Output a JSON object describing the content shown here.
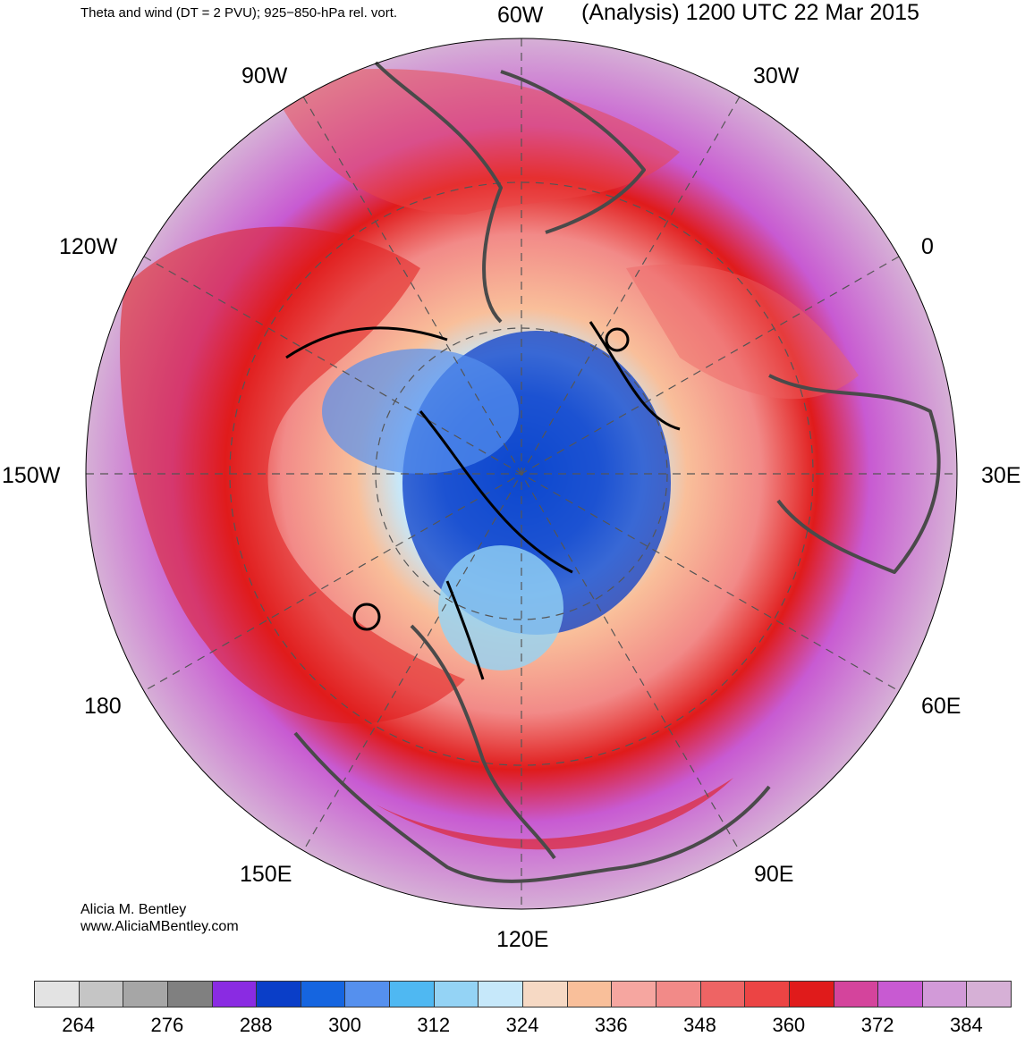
{
  "header": {
    "left_title": "Theta and wind (DT = 2 PVU); 925−850-hPa rel. vort.",
    "right_title": "(Analysis) 1200 UTC 22 Mar 2015"
  },
  "map": {
    "projection": "north-polar-stereographic",
    "longitude_labels": {
      "lon_60W": "60W",
      "lon_30W": "30W",
      "lon_0": "0",
      "lon_30E": "30E",
      "lon_60E": "60E",
      "lon_90E": "90E",
      "lon_120E": "120E",
      "lon_150E": "150E",
      "lon_180": "180",
      "lon_150W": "150W",
      "lon_120W": "120W",
      "lon_90W": "90W"
    }
  },
  "credit": {
    "author": "Alicia M. Bentley",
    "website": "www.AliciaMBentley.com"
  },
  "colorbar": {
    "colors": [
      "#e3e3e3",
      "#c5c5c5",
      "#a6a6a6",
      "#808080",
      "#8a2be2",
      "#0a3ec8",
      "#1565e0",
      "#5590ee",
      "#4fb8f2",
      "#94d3f5",
      "#c6e8fa",
      "#f6d9c4",
      "#f9bf9a",
      "#f6a6a0",
      "#f28a88",
      "#ee6464",
      "#ec4444",
      "#e01b1b",
      "#d4449c",
      "#c85ad2",
      "#d29ad8",
      "#d6b0d6"
    ],
    "labels": [
      "264",
      "276",
      "288",
      "300",
      "312",
      "324",
      "336",
      "348",
      "360",
      "372",
      "384"
    ]
  }
}
